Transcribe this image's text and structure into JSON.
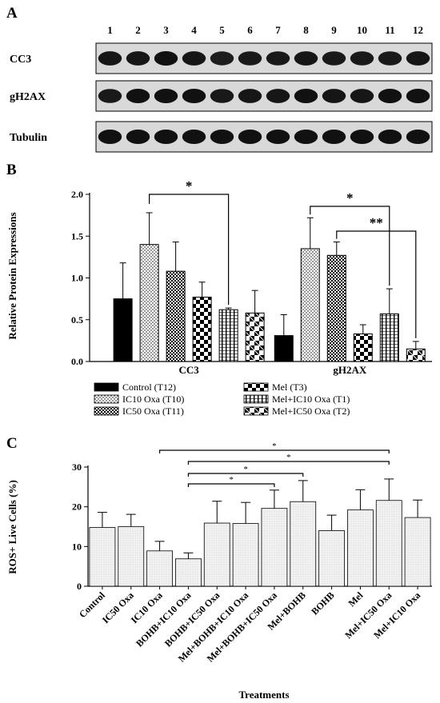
{
  "panel_labels": [
    "A",
    "B",
    "C"
  ],
  "colors": {
    "ink": "#000000",
    "blot_bg": "#d9d9d9",
    "band": "#111111",
    "bar_c_fill": "#e6e6e6"
  },
  "blot": {
    "lanes": [
      "1",
      "2",
      "3",
      "4",
      "5",
      "6",
      "7",
      "8",
      "9",
      "10",
      "11",
      "12"
    ],
    "rows": [
      {
        "label": "CC3",
        "intensity": [
          0.95,
          0.95,
          1.0,
          0.95,
          0.85,
          0.9,
          0.9,
          0.95,
          0.9,
          0.9,
          0.9,
          0.95
        ]
      },
      {
        "label": "gH2AX",
        "intensity": [
          0.9,
          1.0,
          1.0,
          1.0,
          0.9,
          0.95,
          0.95,
          1.0,
          0.95,
          0.95,
          1.0,
          1.0
        ]
      },
      {
        "label": "Tubulin",
        "intensity": [
          1,
          1,
          1,
          1,
          1,
          1,
          1,
          1,
          1,
          1,
          1,
          1
        ]
      }
    ]
  },
  "chart_data": [
    {
      "type": "bar",
      "panel": "B",
      "title": "",
      "xlabel": "",
      "ylabel": "Relative Protein Expressions",
      "ylim": [
        0,
        2.0
      ],
      "yticks": [
        "0.0",
        "0.5",
        "1.0",
        "1.5",
        "2.0"
      ],
      "categories": [
        "CC3",
        "gH2AX"
      ],
      "legend_position": "bottom",
      "series": [
        {
          "name": "Control (T12)",
          "pattern": "solid",
          "values": [
            0.75,
            0.31
          ],
          "errors": [
            0.43,
            0.25
          ]
        },
        {
          "name": "IC10 Oxa (T10)",
          "pattern": "dots",
          "values": [
            1.4,
            1.35
          ],
          "errors": [
            0.38,
            0.37
          ]
        },
        {
          "name": "IC50 Oxa (T11)",
          "pattern": "checker",
          "values": [
            1.08,
            1.27
          ],
          "errors": [
            0.35,
            0.16
          ]
        },
        {
          "name": "Mel (T3)",
          "pattern": "bigchecker",
          "values": [
            0.77,
            0.33
          ],
          "errors": [
            0.18,
            0.11
          ]
        },
        {
          "name": "Mel+IC10 Oxa (T1)",
          "pattern": "vlines",
          "values": [
            0.62,
            0.57
          ],
          "errors": [
            0.02,
            0.3
          ]
        },
        {
          "name": "Mel+IC50 Oxa (T2)",
          "pattern": "xcheck",
          "values": [
            0.58,
            0.15
          ],
          "errors": [
            0.27,
            0.09
          ]
        }
      ],
      "significance": [
        {
          "from": "CC3 / IC10 Oxa (T10)",
          "to": "CC3 / Mel+IC10 Oxa (T1)",
          "label": "*"
        },
        {
          "from": "gH2AX / IC10 Oxa (T10)",
          "to": "gH2AX / Mel+IC10 Oxa (T1)",
          "label": "*"
        },
        {
          "from": "gH2AX / IC50 Oxa (T11)",
          "to": "gH2AX / Mel+IC50 Oxa (T2)",
          "label": "**"
        }
      ]
    },
    {
      "type": "bar",
      "panel": "C",
      "title": "",
      "xlabel": "Treatments",
      "ylabel": "ROS+ Live Cells (%)",
      "ylim": [
        0,
        30
      ],
      "yticks": [
        "0",
        "10",
        "20",
        "30"
      ],
      "categories": [
        "Control",
        "IC50 Oxa",
        "IC10 Oxa",
        "BOHB+IC10 Oxa",
        "BOHB+IC50 Oxa",
        "Mel+BOHB+IC10 Oxa",
        "Mel+BOHB+IC50 Oxa",
        "Mel+BOHB",
        "BOHB",
        "Mel",
        "Mel+IC50 Oxa",
        "Mel+IC10 Oxa"
      ],
      "values": [
        14.8,
        15.0,
        8.9,
        6.9,
        15.9,
        15.8,
        19.6,
        21.3,
        14.0,
        19.2,
        21.6,
        17.3
      ],
      "errors": [
        3.8,
        3.1,
        2.4,
        1.5,
        5.5,
        5.3,
        4.6,
        5.3,
        3.9,
        5.1,
        5.4,
        4.4
      ],
      "significance": [
        {
          "from": "IC10 Oxa",
          "to": "Mel+IC50 Oxa",
          "label": "*"
        },
        {
          "from": "BOHB+IC10 Oxa",
          "to": "Mel+IC50 Oxa",
          "label": "*"
        },
        {
          "from": "BOHB+IC10 Oxa",
          "to": "Mel+BOHB",
          "label": "*"
        },
        {
          "from": "BOHB+IC10 Oxa",
          "to": "Mel+BOHB+IC50 Oxa",
          "label": "*"
        }
      ]
    }
  ]
}
